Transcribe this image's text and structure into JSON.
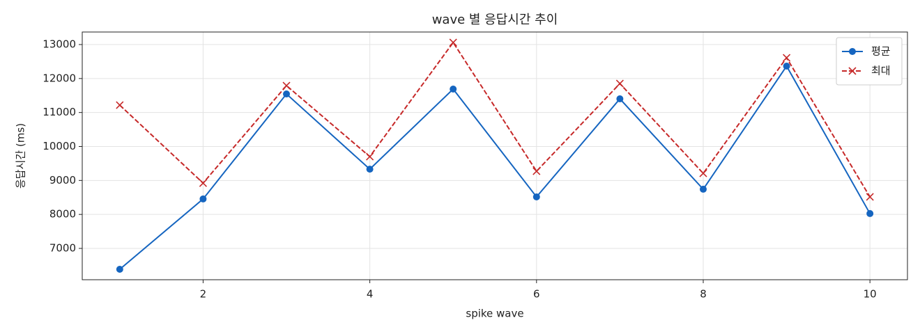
{
  "chart_data": {
    "type": "line",
    "title": "wave 별 응답시간 추이",
    "x_label": "spike wave",
    "y_label": "응답시간 (ms)",
    "x": [
      1,
      2,
      3,
      4,
      5,
      6,
      7,
      8,
      9,
      10
    ],
    "series": [
      {
        "name": "평균",
        "color": "#1565c0",
        "marker": "o",
        "linestyle": "solid",
        "values": [
          6385,
          8455,
          11545,
          9332,
          11690,
          8516,
          11402,
          8742,
          12365,
          8025
        ]
      },
      {
        "name": "최대",
        "color": "#c62828",
        "marker": "x",
        "linestyle": "dashed",
        "values": [
          11217,
          8922,
          11791,
          9701,
          13061,
          9271,
          11852,
          9209,
          12611,
          8516
        ]
      }
    ],
    "xlim": [
      0.55,
      10.45
    ],
    "xticks": [
      2,
      4,
      6,
      8,
      10
    ],
    "ylim": [
      6078,
      13369
    ],
    "yticks": [
      7000,
      8000,
      9000,
      10000,
      11000,
      12000,
      13000
    ],
    "grid": true,
    "legend_loc": "upper right"
  }
}
